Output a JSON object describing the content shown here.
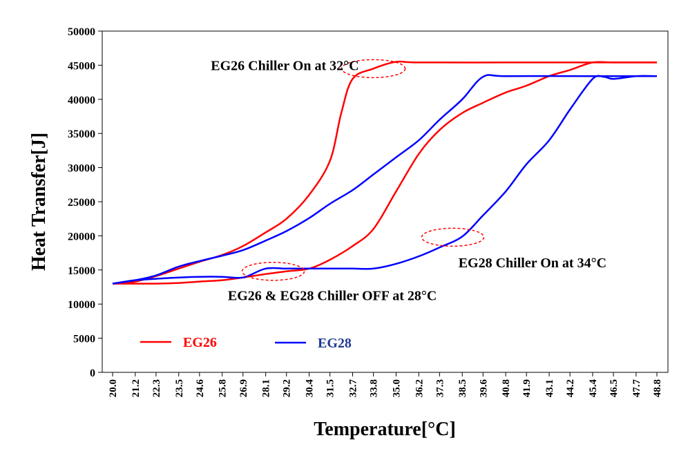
{
  "chart_data": {
    "type": "line",
    "xlabel": "Temperature[°C]",
    "ylabel": "Heat Transfer[J]",
    "x_tick_labels": [
      "20.0",
      "21.2",
      "22.3",
      "23.5",
      "24.6",
      "25.8",
      "26.9",
      "28.1",
      "29.2",
      "30.4",
      "31.5",
      "32.7",
      "33.8",
      "35.0",
      "36.2",
      "37.3",
      "38.5",
      "39.6",
      "40.8",
      "41.9",
      "43.1",
      "44.2",
      "45.4",
      "46.5",
      "47.7",
      "48.8"
    ],
    "y_ticks": [
      0,
      5000,
      10000,
      15000,
      20000,
      25000,
      30000,
      35000,
      40000,
      45000,
      50000
    ],
    "y_tick_labels": [
      "0",
      "5000",
      "10000",
      "15000",
      "20000",
      "25000",
      "30000",
      "35000",
      "40000",
      "45000",
      "50000"
    ],
    "ylim": [
      0,
      50000
    ],
    "grid": false,
    "legend_position": "bottom-left",
    "series": [
      {
        "name": "EG26",
        "color": "#ff0000",
        "heating": [
          [
            20.0,
            13000
          ],
          [
            21.2,
            13300
          ],
          [
            22.3,
            14100
          ],
          [
            23.5,
            15200
          ],
          [
            24.6,
            16200
          ],
          [
            25.8,
            17200
          ],
          [
            26.9,
            18500
          ],
          [
            28.1,
            20500
          ],
          [
            29.2,
            22500
          ],
          [
            30.4,
            26000
          ],
          [
            31.5,
            31000
          ],
          [
            32.1,
            38000
          ],
          [
            32.7,
            43000
          ],
          [
            33.8,
            44500
          ],
          [
            35.0,
            45500
          ],
          [
            36.2,
            45400
          ],
          [
            40.8,
            45400
          ],
          [
            45.4,
            45400
          ],
          [
            48.8,
            45400
          ]
        ],
        "cooling": [
          [
            20.0,
            13000
          ],
          [
            21.2,
            13000
          ],
          [
            22.3,
            13000
          ],
          [
            23.5,
            13100
          ],
          [
            24.6,
            13300
          ],
          [
            25.8,
            13500
          ],
          [
            26.9,
            13900
          ],
          [
            28.1,
            14400
          ],
          [
            29.2,
            14800
          ],
          [
            30.4,
            15200
          ],
          [
            31.5,
            16500
          ],
          [
            32.7,
            18500
          ],
          [
            33.8,
            21000
          ],
          [
            35.0,
            26500
          ],
          [
            36.2,
            32000
          ],
          [
            37.3,
            35500
          ],
          [
            38.5,
            38000
          ],
          [
            39.6,
            39500
          ],
          [
            40.8,
            41000
          ],
          [
            41.9,
            42000
          ],
          [
            43.1,
            43400
          ],
          [
            44.2,
            44300
          ],
          [
            45.4,
            45400
          ],
          [
            46.5,
            45400
          ],
          [
            48.8,
            45400
          ]
        ]
      },
      {
        "name": "EG28",
        "color": "#0000ff",
        "heating": [
          [
            20.0,
            13000
          ],
          [
            21.2,
            13500
          ],
          [
            22.3,
            14200
          ],
          [
            23.5,
            15500
          ],
          [
            24.6,
            16300
          ],
          [
            25.8,
            17100
          ],
          [
            26.9,
            17900
          ],
          [
            28.1,
            19300
          ],
          [
            29.2,
            20700
          ],
          [
            30.4,
            22600
          ],
          [
            31.5,
            24700
          ],
          [
            32.7,
            26700
          ],
          [
            33.8,
            29000
          ],
          [
            35.0,
            31500
          ],
          [
            36.2,
            34000
          ],
          [
            37.3,
            37000
          ],
          [
            38.5,
            40000
          ],
          [
            39.6,
            43300
          ],
          [
            40.8,
            43400
          ],
          [
            45.4,
            43400
          ],
          [
            48.8,
            43400
          ]
        ],
        "cooling": [
          [
            20.0,
            13000
          ],
          [
            21.2,
            13500
          ],
          [
            22.3,
            13700
          ],
          [
            23.5,
            13900
          ],
          [
            24.6,
            14000
          ],
          [
            25.8,
            14000
          ],
          [
            26.9,
            13900
          ],
          [
            28.1,
            15200
          ],
          [
            29.2,
            15200
          ],
          [
            30.4,
            15200
          ],
          [
            31.5,
            15200
          ],
          [
            32.7,
            15200
          ],
          [
            33.8,
            15200
          ],
          [
            35.0,
            15900
          ],
          [
            36.2,
            17000
          ],
          [
            37.3,
            18300
          ],
          [
            38.5,
            19900
          ],
          [
            39.6,
            23000
          ],
          [
            40.8,
            26500
          ],
          [
            41.9,
            30500
          ],
          [
            43.1,
            34000
          ],
          [
            44.2,
            38500
          ],
          [
            45.4,
            43000
          ],
          [
            46.0,
            43300
          ],
          [
            46.5,
            43000
          ],
          [
            47.7,
            43400
          ],
          [
            48.8,
            43400
          ]
        ]
      }
    ],
    "annotations": [
      {
        "text": "EG26 Chiller On at 32°C",
        "x": 25.2,
        "y": 44300,
        "circle_x": 33.8,
        "circle_y": 44500
      },
      {
        "text": "EG28 Chiller On at 34°C",
        "x": 38.3,
        "y": 15400,
        "circle_x": 38.0,
        "circle_y": 19800
      },
      {
        "text": "EG26 & EG28 Chiller OFF at 28°C",
        "x": 26.1,
        "y": 10600,
        "circle_x": 28.5,
        "circle_y": 14800
      }
    ]
  }
}
